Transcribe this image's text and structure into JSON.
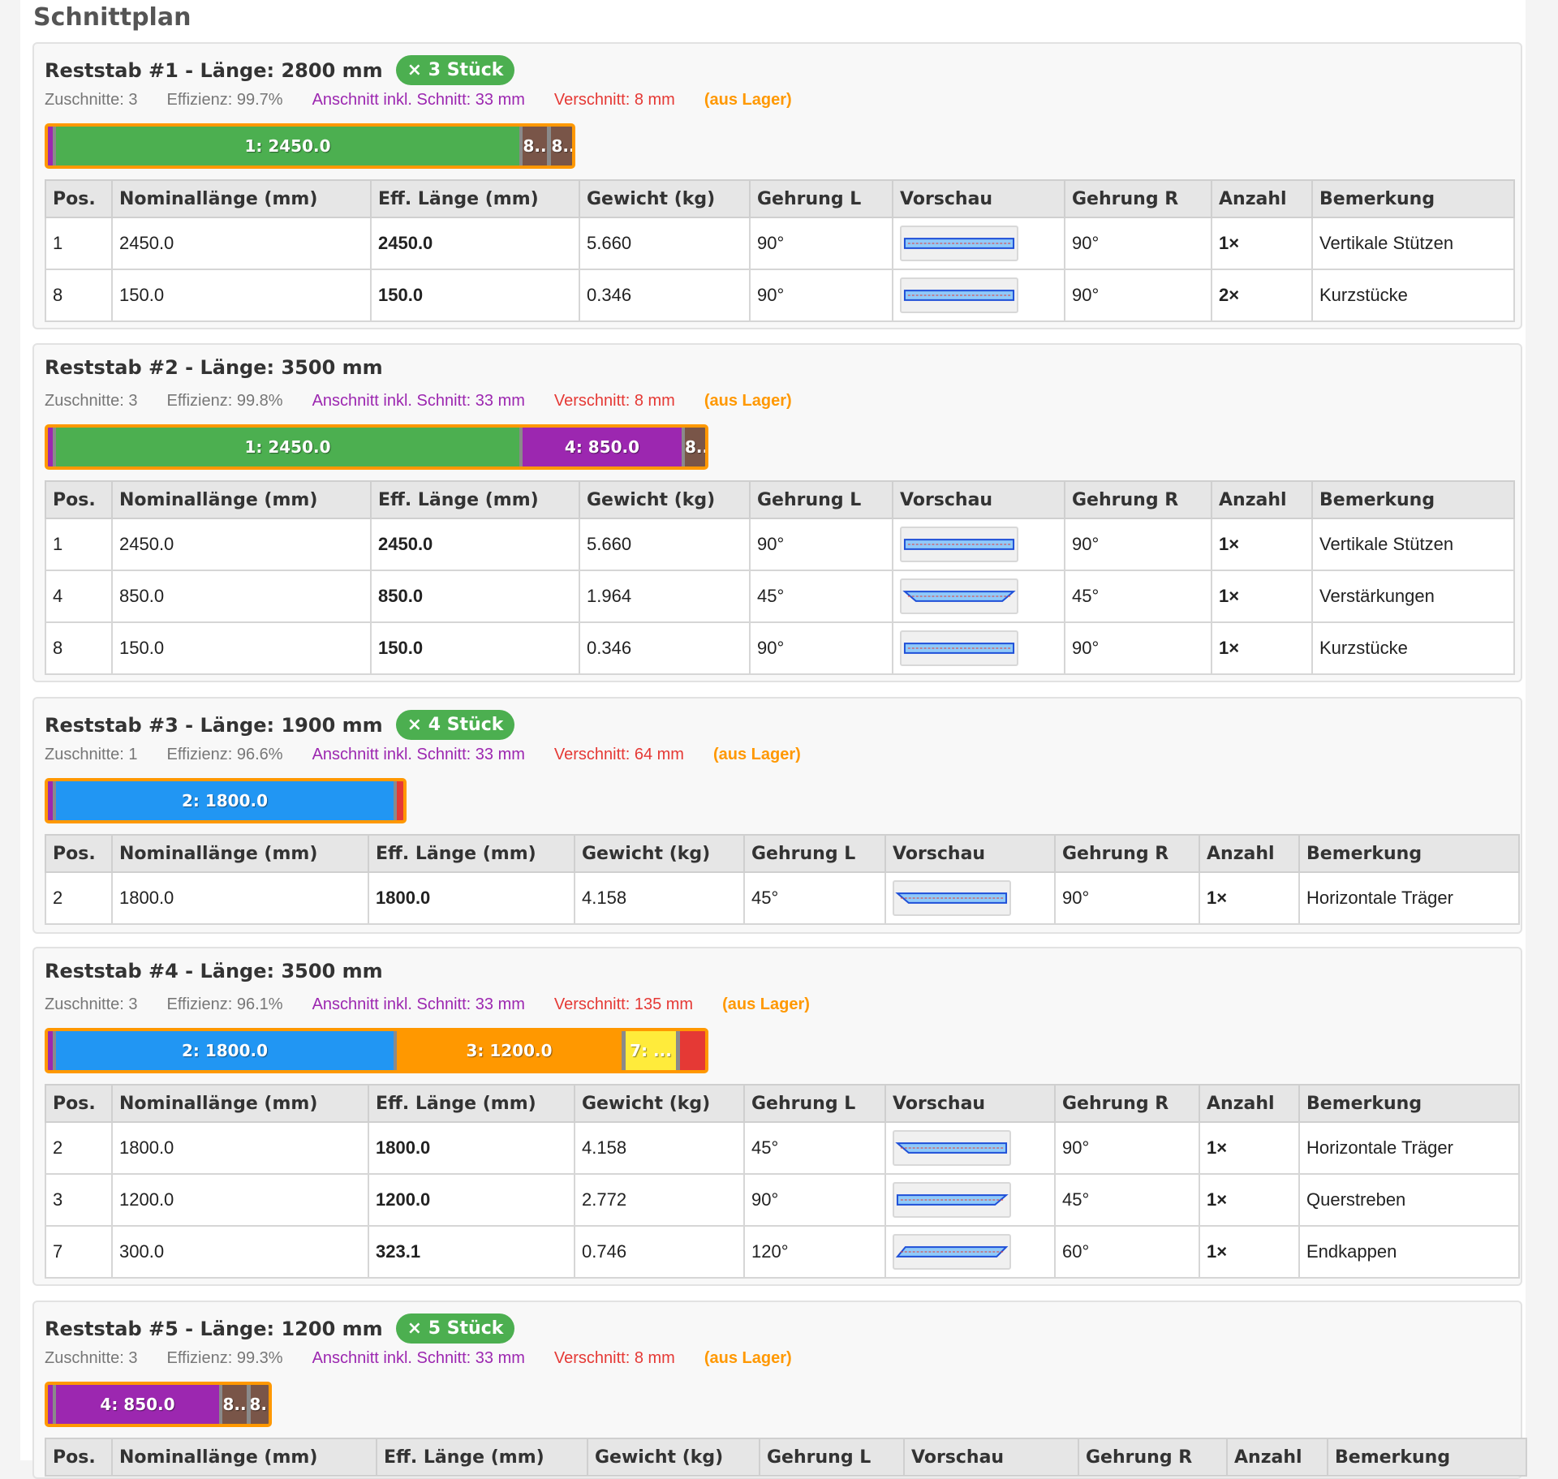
{
  "title": "Schnittplan",
  "columns": [
    "Pos.",
    "Nominallänge (mm)",
    "Eff. Länge (mm)",
    "Gewicht (kg)",
    "Gehrung L",
    "Vorschau",
    "Gehrung R",
    "Anzahl",
    "Bemerkung"
  ],
  "colors": {
    "pos1": "#4caf50",
    "pos2": "#2196f3",
    "pos3": "#ff9800",
    "pos4": "#9c27b0",
    "pos7": "#ffeb3b",
    "pos8": "#795548",
    "offcut": "#9c27b0",
    "waste": "#e53935",
    "stock_border": "#ff9800"
  },
  "cards": [
    {
      "title": "Reststab #1 - Länge: 2800 mm",
      "badge": "× 3 Stück",
      "count": "Zuschnitte: 3",
      "efficiency": "Effizienz: 99.7%",
      "offcut": "Anschnitt inkl. Schnitt: 33 mm",
      "waste": "Verschnitt: 8 mm",
      "stock": "(aus Lager)",
      "segments": [
        {
          "label": "",
          "pos": "offcut"
        },
        {
          "label": "1: 2450.0",
          "pos": "1"
        },
        {
          "label": "8..",
          "pos": "8"
        },
        {
          "label": "8..",
          "pos": "8"
        }
      ],
      "rows": [
        {
          "pos": "1",
          "nominal": "2450.0",
          "eff": "2450.0",
          "weight": "5.660",
          "miter_l": "90°",
          "miter_r": "90°",
          "qty": "1×",
          "note": "Vertikale Stützen",
          "shape": "rect"
        },
        {
          "pos": "8",
          "nominal": "150.0",
          "eff": "150.0",
          "weight": "0.346",
          "miter_l": "90°",
          "miter_r": "90°",
          "qty": "2×",
          "note": "Kurzstücke",
          "shape": "rect"
        }
      ]
    },
    {
      "title": "Reststab #2 - Länge: 3500 mm",
      "badge": "",
      "count": "Zuschnitte: 3",
      "efficiency": "Effizienz: 99.8%",
      "offcut": "Anschnitt inkl. Schnitt: 33 mm",
      "waste": "Verschnitt: 8 mm",
      "stock": "(aus Lager)",
      "segments": [
        {
          "label": "",
          "pos": "offcut"
        },
        {
          "label": "1: 2450.0",
          "pos": "1"
        },
        {
          "label": "4: 850.0",
          "pos": "4"
        },
        {
          "label": "8..",
          "pos": "8"
        }
      ],
      "rows": [
        {
          "pos": "1",
          "nominal": "2450.0",
          "eff": "2450.0",
          "weight": "5.660",
          "miter_l": "90°",
          "miter_r": "90°",
          "qty": "1×",
          "note": "Vertikale Stützen",
          "shape": "rect"
        },
        {
          "pos": "4",
          "nominal": "850.0",
          "eff": "850.0",
          "weight": "1.964",
          "miter_l": "45°",
          "miter_r": "45°",
          "qty": "1×",
          "note": "Verstärkungen",
          "shape": "trap"
        },
        {
          "pos": "8",
          "nominal": "150.0",
          "eff": "150.0",
          "weight": "0.346",
          "miter_l": "90°",
          "miter_r": "90°",
          "qty": "1×",
          "note": "Kurzstücke",
          "shape": "rect"
        }
      ]
    },
    {
      "title": "Reststab #3 - Länge: 1900 mm",
      "badge": "× 4 Stück",
      "count": "Zuschnitte: 1",
      "efficiency": "Effizienz: 96.6%",
      "offcut": "Anschnitt inkl. Schnitt: 33 mm",
      "waste": "Verschnitt: 64 mm",
      "stock": "(aus Lager)",
      "segments": [
        {
          "label": "",
          "pos": "offcut"
        },
        {
          "label": "2: 1800.0",
          "pos": "2"
        },
        {
          "label": "",
          "pos": "waste"
        }
      ],
      "rows": [
        {
          "pos": "2",
          "nominal": "1800.0",
          "eff": "1800.0",
          "weight": "4.158",
          "miter_l": "45°",
          "miter_r": "90°",
          "qty": "1×",
          "note": "Horizontale Träger",
          "shape": "left45"
        }
      ]
    },
    {
      "title": "Reststab #4 - Länge: 3500 mm",
      "badge": "",
      "count": "Zuschnitte: 3",
      "efficiency": "Effizienz: 96.1%",
      "offcut": "Anschnitt inkl. Schnitt: 33 mm",
      "waste": "Verschnitt: 135 mm",
      "stock": "(aus Lager)",
      "segments": [
        {
          "label": "",
          "pos": "offcut"
        },
        {
          "label": "2: 1800.0",
          "pos": "2"
        },
        {
          "label": "3: 1200.0",
          "pos": "3"
        },
        {
          "label": "7: ...",
          "pos": "7"
        },
        {
          "label": "",
          "pos": "waste"
        }
      ],
      "rows": [
        {
          "pos": "2",
          "nominal": "1800.0",
          "eff": "1800.0",
          "weight": "4.158",
          "miter_l": "45°",
          "miter_r": "90°",
          "qty": "1×",
          "note": "Horizontale Träger",
          "shape": "left45"
        },
        {
          "pos": "3",
          "nominal": "1200.0",
          "eff": "1200.0",
          "weight": "2.772",
          "miter_l": "90°",
          "miter_r": "45°",
          "qty": "1×",
          "note": "Querstreben",
          "shape": "right45"
        },
        {
          "pos": "7",
          "nominal": "300.0",
          "eff": "323.1",
          "weight": "0.746",
          "miter_l": "120°",
          "miter_r": "60°",
          "qty": "1×",
          "note": "Endkappen",
          "shape": "para"
        }
      ]
    },
    {
      "title": "Reststab #5 - Länge: 1200 mm",
      "badge": "× 5 Stück",
      "count": "Zuschnitte: 3",
      "efficiency": "Effizienz: 99.3%",
      "offcut": "Anschnitt inkl. Schnitt: 33 mm",
      "waste": "Verschnitt: 8 mm",
      "stock": "(aus Lager)",
      "segments": [
        {
          "label": "",
          "pos": "offcut"
        },
        {
          "label": "4: 850.0",
          "pos": "4"
        },
        {
          "label": "8..",
          "pos": "8"
        },
        {
          "label": "8..",
          "pos": "8"
        }
      ],
      "rows": []
    }
  ]
}
